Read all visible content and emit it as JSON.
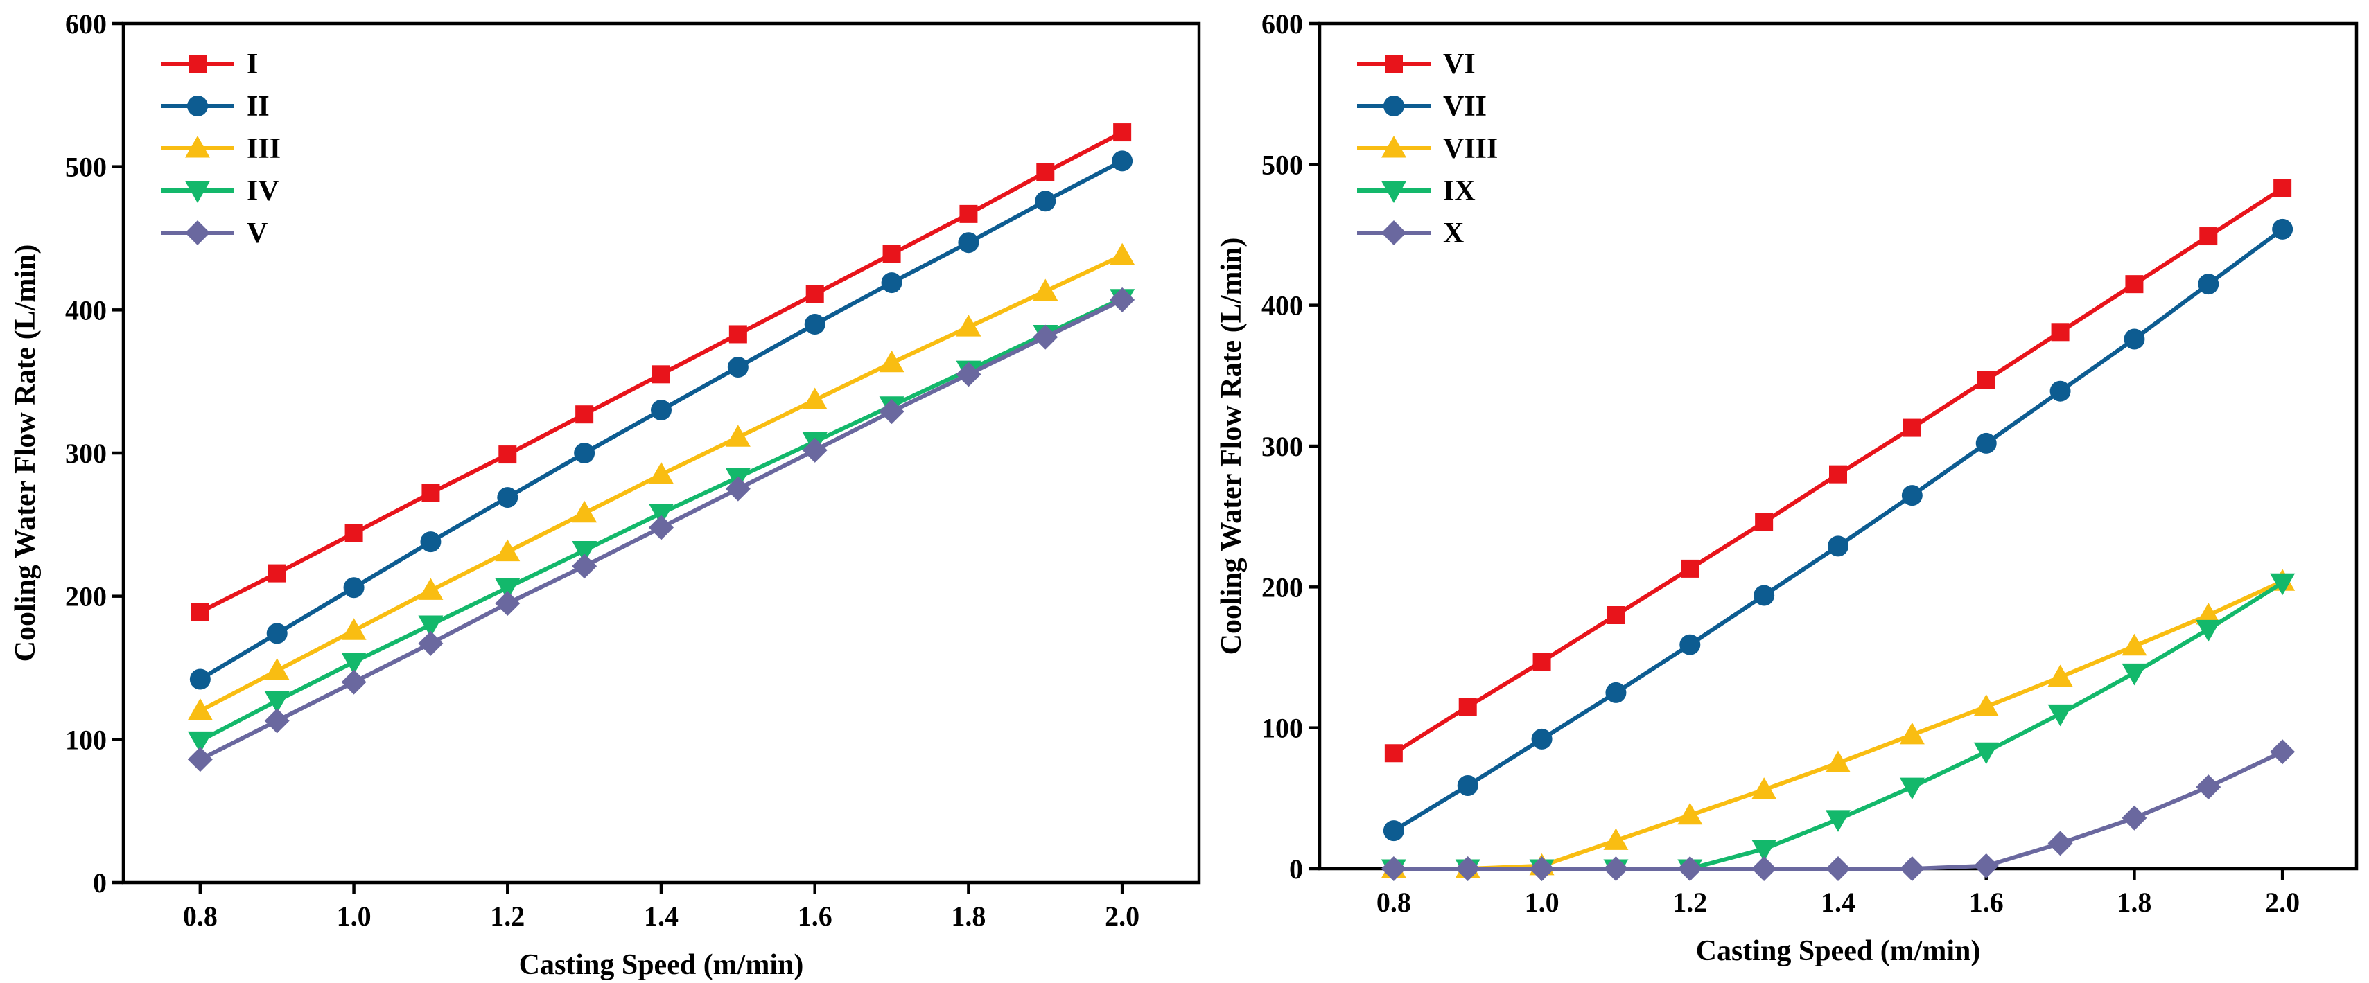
{
  "chart_data": [
    {
      "type": "line",
      "title": "",
      "xlabel": "Casting Speed (m/min)",
      "ylabel": "Cooling Water Flow Rate (L/min)",
      "xlim": [
        0.7,
        2.1
      ],
      "ylim": [
        0,
        600
      ],
      "xticks": [
        "0.8",
        "1.0",
        "1.2",
        "1.4",
        "1.6",
        "1.8",
        "2.0"
      ],
      "yticks": [
        "0",
        "100",
        "200",
        "300",
        "400",
        "500",
        "600"
      ],
      "legend_position": "top-left",
      "x": [
        0.8,
        0.9,
        1.0,
        1.1,
        1.2,
        1.3,
        1.4,
        1.5,
        1.6,
        1.7,
        1.8,
        1.9,
        2.0
      ],
      "series": [
        {
          "name": "I",
          "color": "#e8141b",
          "marker": "square",
          "values": [
            189,
            216,
            244,
            272,
            299,
            327,
            355,
            383,
            411,
            439,
            467,
            496,
            524
          ]
        },
        {
          "name": "II",
          "color": "#0d5c91",
          "marker": "circle",
          "values": [
            142,
            174,
            206,
            238,
            269,
            300,
            330,
            360,
            390,
            419,
            447,
            476,
            504
          ]
        },
        {
          "name": "III",
          "color": "#f9bd12",
          "marker": "triangle-up",
          "values": [
            120,
            148,
            176,
            204,
            231,
            258,
            285,
            311,
            337,
            363,
            388,
            413,
            438
          ]
        },
        {
          "name": "IV",
          "color": "#13b86b",
          "marker": "triangle-down",
          "values": [
            99,
            127,
            154,
            180,
            206,
            232,
            258,
            283,
            308,
            333,
            358,
            383,
            408
          ]
        },
        {
          "name": "V",
          "color": "#6a689f",
          "marker": "diamond",
          "values": [
            86,
            113,
            140,
            167,
            195,
            221,
            248,
            275,
            302,
            329,
            355,
            381,
            407
          ]
        }
      ]
    },
    {
      "type": "line",
      "title": "",
      "xlabel": "Casting Speed (m/min)",
      "ylabel": "Cooling Water Flow Rate (L/min)",
      "xlim": [
        0.7,
        2.1
      ],
      "ylim": [
        0,
        600
      ],
      "xticks": [
        "0.8",
        "1.0",
        "1.2",
        "1.4",
        "1.6",
        "1.8",
        "2.0"
      ],
      "yticks": [
        "0",
        "100",
        "200",
        "300",
        "400",
        "500",
        "600"
      ],
      "legend_position": "top-left",
      "x": [
        0.8,
        0.9,
        1.0,
        1.1,
        1.2,
        1.3,
        1.4,
        1.5,
        1.6,
        1.7,
        1.8,
        1.9,
        2.0
      ],
      "series": [
        {
          "name": "VI",
          "color": "#e8141b",
          "marker": "square",
          "values": [
            82,
            115,
            147,
            180,
            213,
            246,
            280,
            313,
            347,
            381,
            415,
            449,
            483
          ]
        },
        {
          "name": "VII",
          "color": "#0d5c91",
          "marker": "circle",
          "values": [
            27,
            59,
            92,
            125,
            159,
            194,
            229,
            265,
            302,
            339,
            376,
            415,
            454
          ]
        },
        {
          "name": "VIII",
          "color": "#f9bd12",
          "marker": "triangle-up",
          "values": [
            0,
            0,
            2,
            20,
            38,
            56,
            75,
            95,
            115,
            136,
            158,
            180,
            204
          ]
        },
        {
          "name": "IX",
          "color": "#13b86b",
          "marker": "triangle-down",
          "values": [
            0,
            0,
            0,
            0,
            0,
            14,
            35,
            58,
            83,
            110,
            139,
            170,
            203
          ]
        },
        {
          "name": "X",
          "color": "#6a689f",
          "marker": "diamond",
          "values": [
            0,
            0,
            0,
            0,
            0,
            0,
            0,
            0,
            2,
            18,
            36,
            58,
            83
          ]
        }
      ]
    }
  ]
}
